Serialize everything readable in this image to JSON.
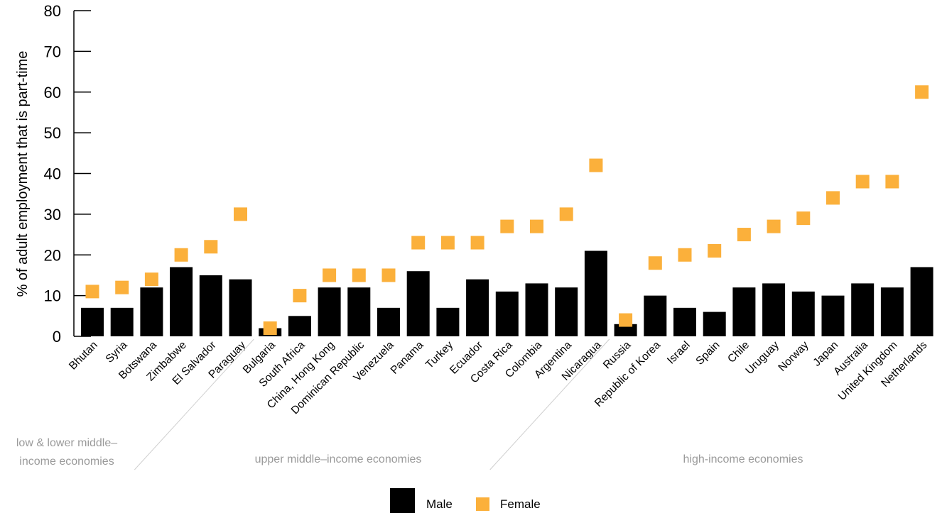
{
  "chart_data": {
    "type": "bar",
    "ylabel": "% of adult employment that is part-time",
    "ylim": [
      0,
      80
    ],
    "yticks": [
      0,
      10,
      20,
      30,
      40,
      50,
      60,
      70,
      80
    ],
    "categories": [
      "Bhutan",
      "Syria",
      "Botswana",
      "Zimbabwe",
      "El Salvador",
      "Paraguay",
      "Bulgaria",
      "South Africa",
      "China, Hong Kong",
      "Dominican Republic",
      "Venezuela",
      "Panama",
      "Turkey",
      "Ecuador",
      "Costa Rica",
      "Colombia",
      "Argentina",
      "Nicaragua",
      "Russia",
      "Republic of Korea",
      "Israel",
      "Spain",
      "Chile",
      "Uruguay",
      "Norway",
      "Japan",
      "Australia",
      "United Kingdom",
      "Netherlands"
    ],
    "series": [
      {
        "name": "Male",
        "type": "bar",
        "color": "#000000",
        "values": [
          7,
          7,
          12,
          17,
          15,
          14,
          2,
          5,
          12,
          12,
          7,
          16,
          7,
          14,
          11,
          13,
          12,
          21,
          3,
          10,
          7,
          6,
          12,
          13,
          11,
          10,
          13,
          12,
          17
        ]
      },
      {
        "name": "Female",
        "type": "scatter",
        "marker": "square",
        "color": "#FBB03B",
        "values": [
          11,
          12,
          14,
          20,
          22,
          30,
          2,
          10,
          15,
          15,
          15,
          23,
          23,
          23,
          27,
          27,
          30,
          42,
          4,
          18,
          20,
          21,
          25,
          27,
          29,
          34,
          38,
          38,
          60
        ]
      }
    ],
    "groups": [
      {
        "label": "low & lower middle–\nincome economies",
        "lines": [
          "low & lower middle–",
          "income economies"
        ],
        "from": 0,
        "to": 5
      },
      {
        "label": "upper middle–income economies",
        "lines": [
          "upper middle–income economies"
        ],
        "from": 6,
        "to": 17
      },
      {
        "label": "high-income economies",
        "lines": [
          "high-income economies"
        ],
        "from": 18,
        "to": 28
      }
    ],
    "legend": {
      "position": "bottom-center",
      "items": [
        "Male",
        "Female"
      ]
    },
    "grid": false
  }
}
